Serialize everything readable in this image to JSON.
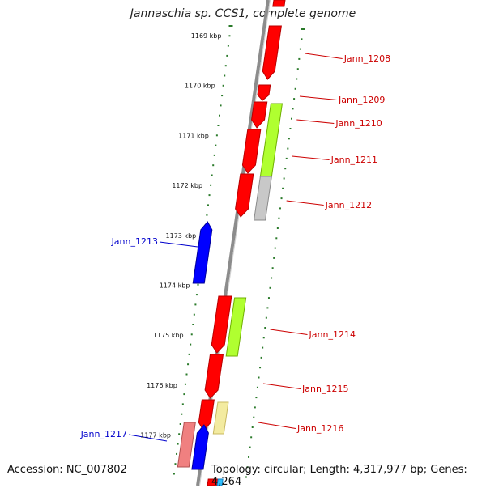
{
  "title": "Jannaschia sp. CCS1, complete genome",
  "accession": "Accession: NC_007802",
  "topology": "Topology: circular; Length: 4,317,977 bp; Genes: 4,264",
  "colors": {
    "backbone": "#8c8c8c",
    "tick_left": "#2a7a2a",
    "tick_right": "#2a7a2a",
    "kbp_label": "#111111",
    "gene_label_forward": "#cc0000",
    "gene_label_reverse": "#0000cc",
    "red": "#ff0000",
    "red_dark": "#b80000",
    "blue": "#0000ff",
    "blue_dark": "#00009a",
    "lime": "#b0ff30",
    "lime_dark": "#70b000",
    "gray": "#c8c8c8",
    "gray_dark": "#8a8a8a",
    "yellow": "#f3eba0",
    "yellow_dark": "#c8b860",
    "pink": "#f08080",
    "pink_dark": "#b05050"
  },
  "kbp_labels": [
    "1169 kbp",
    "1170 kbp",
    "1171 kbp",
    "1172 kbp",
    "1173 kbp",
    "1174 kbp",
    "1175 kbp",
    "1176 kbp",
    "1177 kbp"
  ],
  "gene_labels_forward": [
    "Jann_1208",
    "Jann_1209",
    "Jann_1210",
    "Jann_1211",
    "Jann_1212",
    "Jann_1214",
    "Jann_1215",
    "Jann_1216"
  ],
  "gene_labels_reverse": [
    "Jann_1213",
    "Jann_1217"
  ]
}
